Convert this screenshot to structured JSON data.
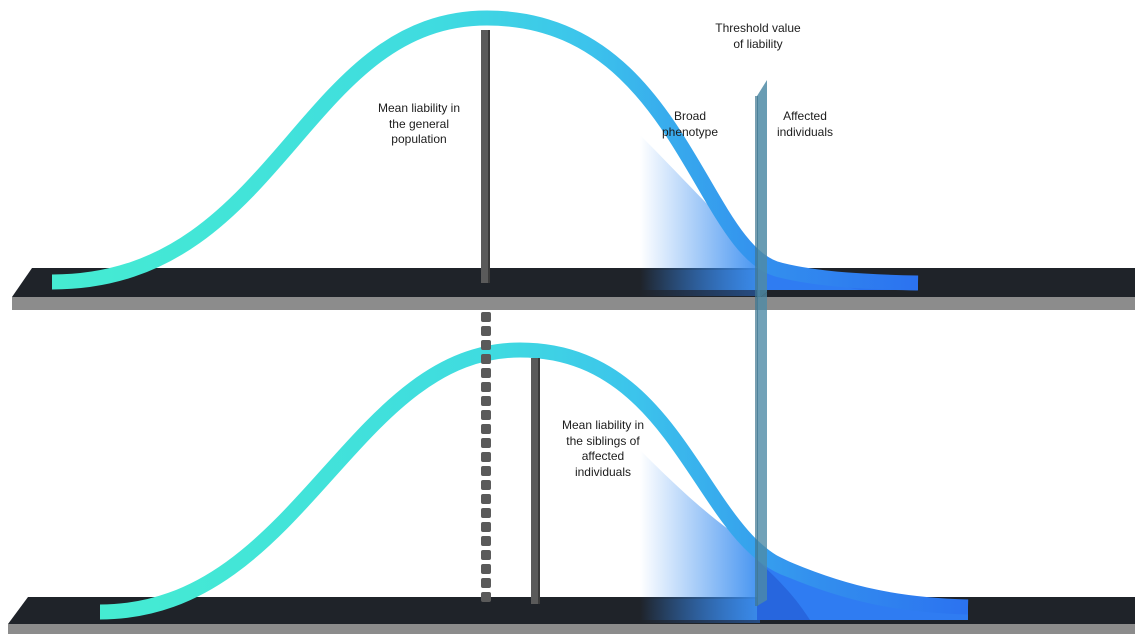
{
  "labels": {
    "mean_general": "Mean liability in\nthe general\npopulation",
    "broad_phenotype": "Broad\nphenotype",
    "affected_individuals": "Affected\nindividuals",
    "threshold": "Threshold value\nof liability",
    "mean_siblings": "Mean liability in\nthe siblings of\naffected\nindividuals"
  },
  "colors": {
    "curve_start": "#45ecd2",
    "curve_mid": "#3cc3ec",
    "curve_end": "#2b72f0",
    "affected_fill": "#2f7cf2",
    "broad_fill": "#3b8ef0",
    "platform_top": "#1f2329",
    "platform_side": "#8c8c8c",
    "threshold_plane": "#4f8ba6",
    "mean_bar": "#5a5a5a"
  }
}
